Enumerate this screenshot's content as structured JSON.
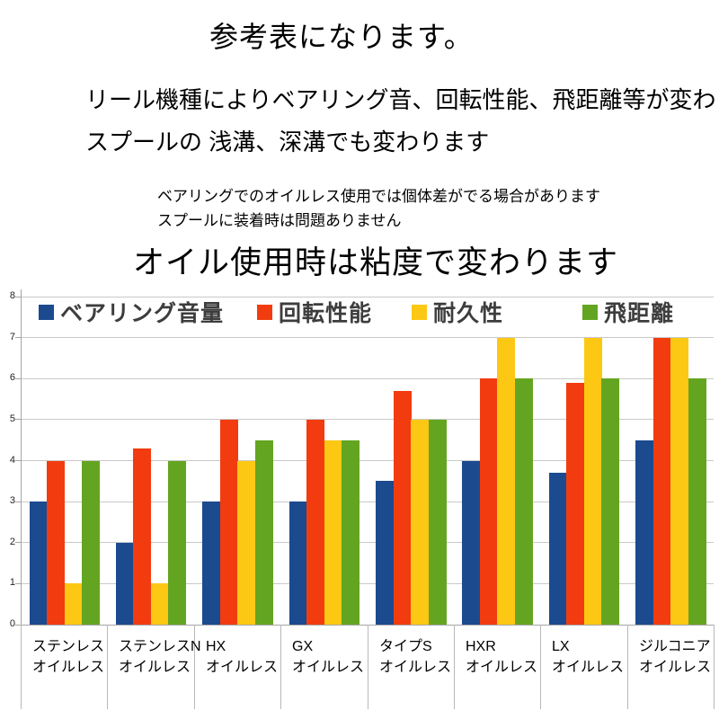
{
  "page": {
    "title": "参考表になります。",
    "intro_line1": "リール機種によりベアリング音、回転性能、飛距離等が変わります。",
    "intro_line2": "スプールの 浅溝、深溝でも変わります",
    "note_line1": "ベアリングでのオイルレス使用では個体差がでる場合があります",
    "note_line2": "スプールに装着時は問題ありません",
    "chart_heading": "オイル使用時は粘度で変わります"
  },
  "chart_data": {
    "type": "bar",
    "title": "オイル使用時は粘度で変わります",
    "xlabel": "",
    "ylabel": "",
    "ylim": [
      0,
      8
    ],
    "yticks": [
      0,
      1,
      2,
      3,
      4,
      5,
      6,
      7,
      8
    ],
    "grid": true,
    "legend_position": "top",
    "category_sub_label": "オイルレス",
    "categories": [
      "ステンレス",
      "ステンレスN",
      "HX",
      "GX",
      "タイプS",
      "HXR",
      "LX",
      "ジルコニア"
    ],
    "series": [
      {
        "name": "ベアリング音量",
        "color": "#1b4a8f",
        "values": [
          3,
          2,
          3,
          3,
          3.5,
          4,
          3.7,
          4.5
        ]
      },
      {
        "name": "回転性能",
        "color": "#f23c10",
        "values": [
          4,
          4.3,
          5,
          5,
          5.7,
          6,
          5.9,
          7
        ]
      },
      {
        "name": "耐久性",
        "color": "#fdc813",
        "values": [
          1,
          1,
          4,
          4.5,
          5,
          7,
          7,
          7
        ]
      },
      {
        "name": "飛距離",
        "color": "#63a520",
        "values": [
          4,
          4,
          4.5,
          4.5,
          5,
          6,
          6,
          6
        ]
      }
    ]
  }
}
